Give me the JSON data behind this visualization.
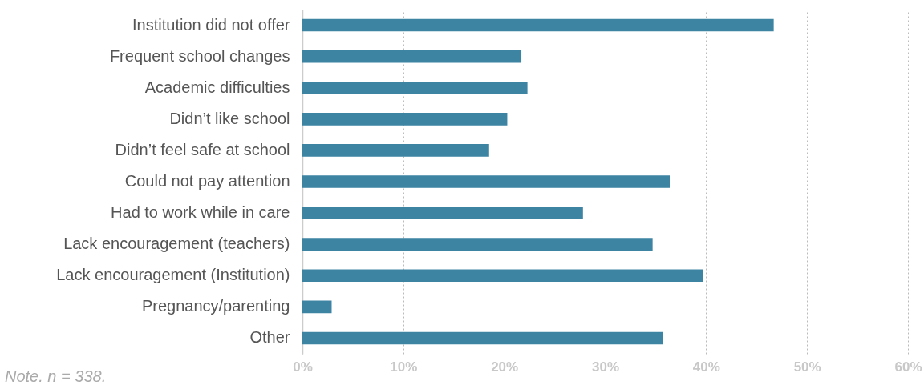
{
  "chart_data": {
    "type": "bar",
    "orientation": "horizontal",
    "categories": [
      "Institution did not offer",
      "Frequent school changes",
      "Academic difficulties",
      "Didn’t like school",
      "Didn’t feel safe at school",
      "Could not pay attention",
      "Had to work while in care",
      "Lack encouragement (teachers)",
      "Lack encouragement (Institution)",
      "Pregnancy/parenting",
      "Other"
    ],
    "values": [
      46.7,
      21.7,
      22.3,
      20.3,
      18.5,
      36.4,
      27.8,
      34.7,
      39.7,
      2.9,
      35.7
    ],
    "color": "#3d84a3",
    "xlim": [
      0,
      60
    ],
    "xticks": [
      {
        "value": 0,
        "label": "0%"
      },
      {
        "value": 10,
        "label": "10%"
      },
      {
        "value": 20,
        "label": "20%"
      },
      {
        "value": 30,
        "label": "30%"
      },
      {
        "value": 40,
        "label": "40%"
      },
      {
        "value": 50,
        "label": "50%"
      },
      {
        "value": 60,
        "label": "60%"
      }
    ],
    "grid": "x",
    "annotations": [
      "Note. n = 338."
    ]
  }
}
